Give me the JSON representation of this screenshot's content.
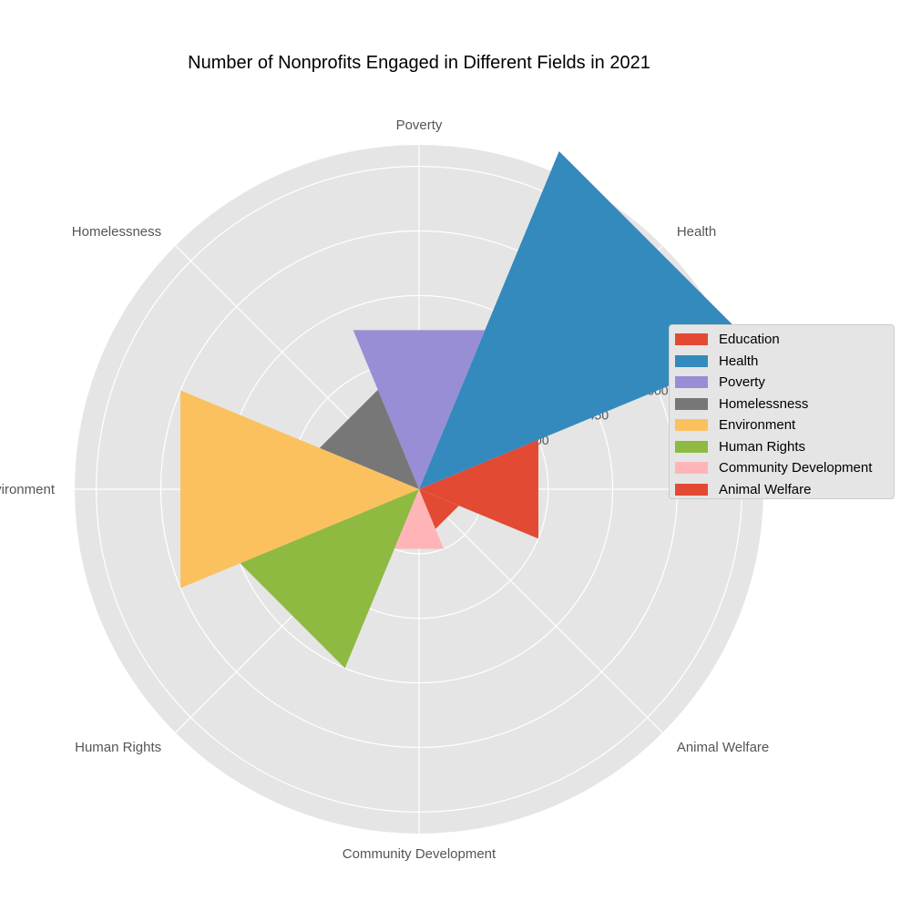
{
  "chart_data": {
    "type": "polar-bar",
    "title": "Number of Nonprofits Engaged in Different Fields in 2021",
    "categories": [
      "Education",
      "Health",
      "Poverty",
      "Homelessness",
      "Environment",
      "Human Rights",
      "Community Development",
      "Animal Welfare"
    ],
    "values": [
      300,
      850,
      400,
      250,
      600,
      450,
      150,
      100
    ],
    "colors": [
      "#E24A33",
      "#348ABD",
      "#988ED5",
      "#777777",
      "#FBC15E",
      "#8EBA42",
      "#FFB5B8",
      "#E24A33"
    ],
    "radial_ticks": [
      150,
      300,
      450,
      600,
      750
    ],
    "rmax": 800,
    "grid": true,
    "legend": {
      "position": "right",
      "entries": [
        "Education",
        "Health",
        "Poverty",
        "Homelessness",
        "Environment",
        "Human Rights",
        "Community Development",
        "Animal Welfare"
      ]
    }
  }
}
